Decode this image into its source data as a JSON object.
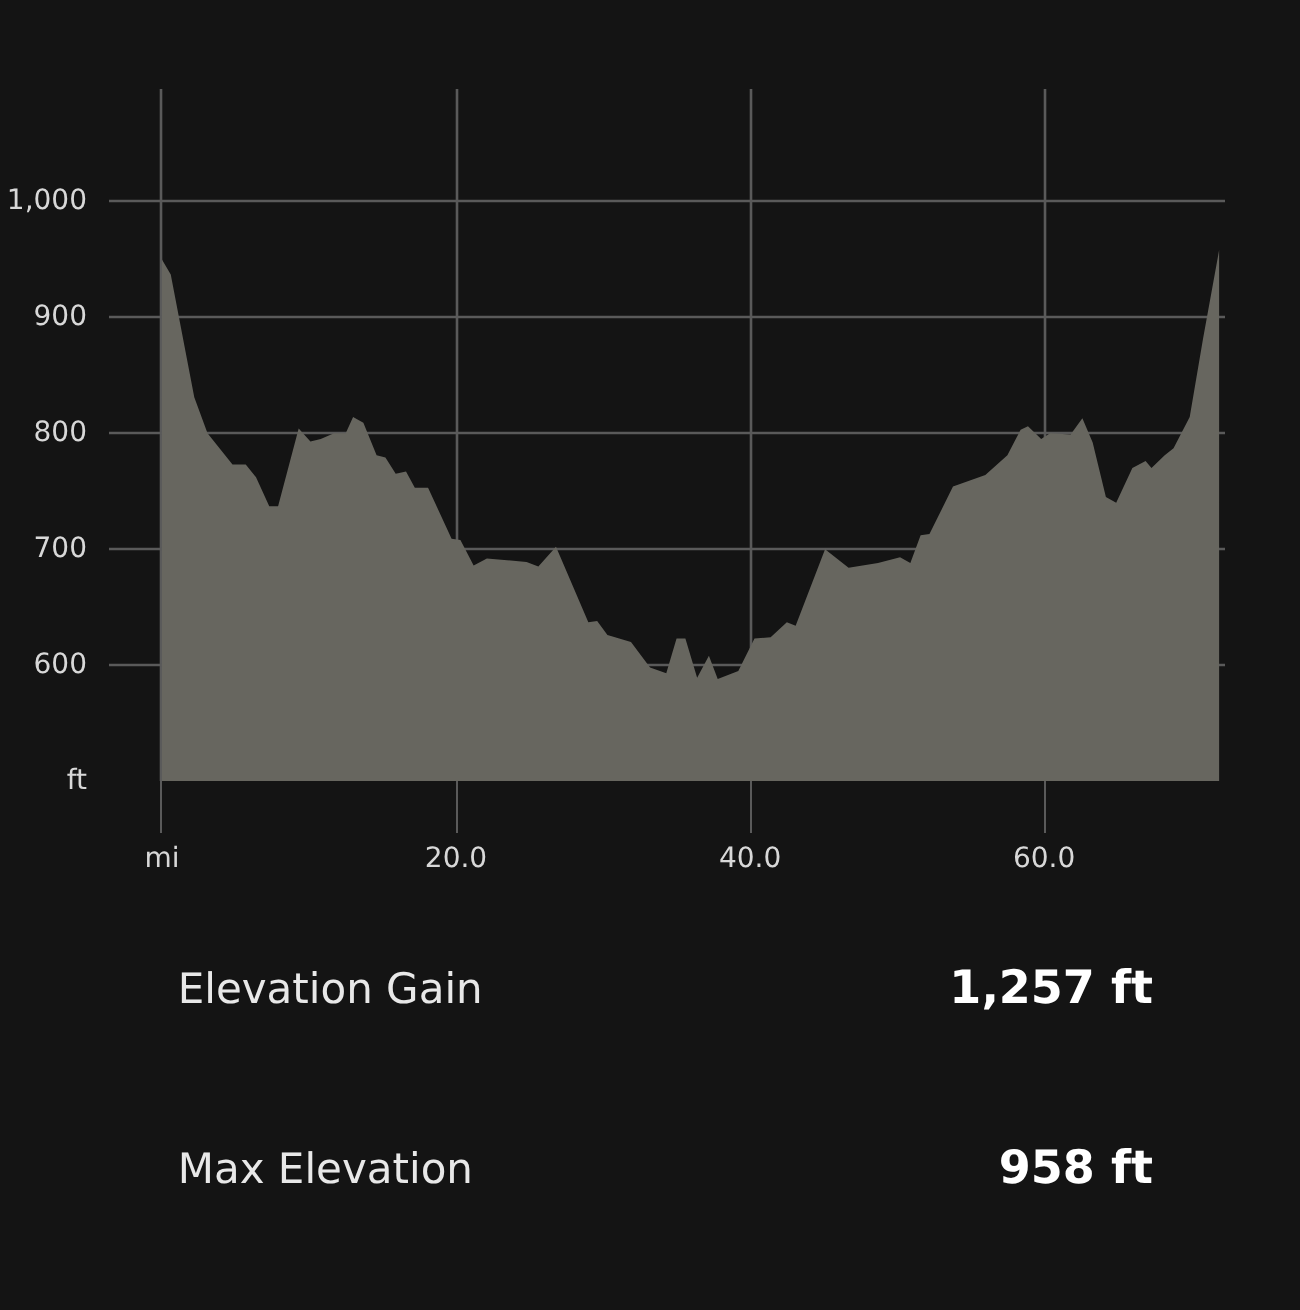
{
  "chart_data": {
    "type": "area",
    "color": "#67665f",
    "xlim": [
      -3.6,
      72.3
    ],
    "ylim": [
      500,
      1097
    ],
    "xticks": [
      {
        "value": 0,
        "label": "mi"
      },
      {
        "value": 20,
        "label": "20.0"
      },
      {
        "value": 40,
        "label": "40.0"
      },
      {
        "value": 60,
        "label": "60.0"
      }
    ],
    "yticks": [
      {
        "value": 500,
        "label": "ft"
      },
      600,
      700,
      800,
      900,
      {
        "value": 1000,
        "label": "1,000"
      }
    ],
    "grid": true,
    "x": [
      0,
      0.6,
      2.2,
      3.1,
      4.8,
      5.7,
      6.4,
      7.3,
      7.9,
      9.3,
      10.1,
      10.8,
      11.7,
      12.5,
      13.0,
      13.7,
      14.6,
      15.2,
      15.9,
      16.6,
      17.2,
      18.1,
      19.7,
      20.3,
      21.2,
      22.1,
      24.8,
      25.6,
      26.8,
      29.0,
      29.6,
      30.3,
      31.9,
      33.2,
      34.3,
      35.0,
      35.6,
      36.4,
      37.2,
      37.8,
      39.2,
      40.3,
      41.4,
      42.5,
      43.1,
      45.1,
      46.7,
      48.7,
      50.2,
      50.9,
      51.6,
      52.2,
      53.8,
      54.9,
      56.0,
      57.5,
      58.4,
      58.9,
      59.8,
      60.4,
      61.8,
      62.6,
      63.3,
      64.2,
      64.9,
      66.0,
      66.9,
      67.3,
      68.2,
      68.8,
      69.9,
      70.8,
      71.9
    ],
    "values": [
      950,
      937,
      831,
      800,
      773,
      773,
      762,
      737,
      737,
      804,
      793,
      795,
      800,
      800,
      814,
      809,
      781,
      779,
      765,
      767,
      753,
      753,
      709,
      708,
      686,
      692,
      689,
      685,
      702,
      637,
      638,
      626,
      620,
      598,
      593,
      623,
      623,
      589,
      608,
      588,
      595,
      623,
      624,
      637,
      634,
      700,
      684,
      688,
      693,
      688,
      712,
      713,
      754,
      759,
      764,
      781,
      803,
      806,
      795,
      800,
      799,
      813,
      792,
      745,
      740,
      770,
      776,
      770,
      781,
      787,
      814,
      881,
      958
    ],
    "annotations": [
      "Elevation Gain",
      "1,257 ft",
      "Max Elevation",
      "958 ft"
    ]
  }
}
